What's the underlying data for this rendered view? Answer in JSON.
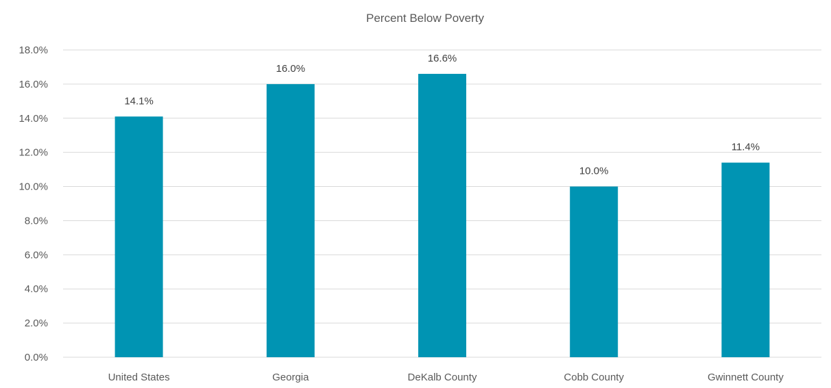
{
  "chart_data": {
    "type": "bar",
    "title": "Percent Below Poverty",
    "xlabel": "",
    "ylabel": "",
    "categories": [
      "United States",
      "Georgia",
      "DeKalb County",
      "Cobb County",
      "Gwinnett County"
    ],
    "values": [
      14.1,
      16.0,
      16.6,
      10.0,
      11.4
    ],
    "data_labels": [
      "14.1%",
      "16.0%",
      "16.6%",
      "10.0%",
      "11.4%"
    ],
    "ylim": [
      0,
      18
    ],
    "yticks": [
      0,
      2,
      4,
      6,
      8,
      10,
      12,
      14,
      16,
      18
    ],
    "ytick_labels": [
      "0.0%",
      "2.0%",
      "4.0%",
      "6.0%",
      "8.0%",
      "10.0%",
      "12.0%",
      "14.0%",
      "16.0%",
      "18.0%"
    ],
    "grid": true,
    "legend": "none",
    "bar_color": "#0094b3"
  }
}
